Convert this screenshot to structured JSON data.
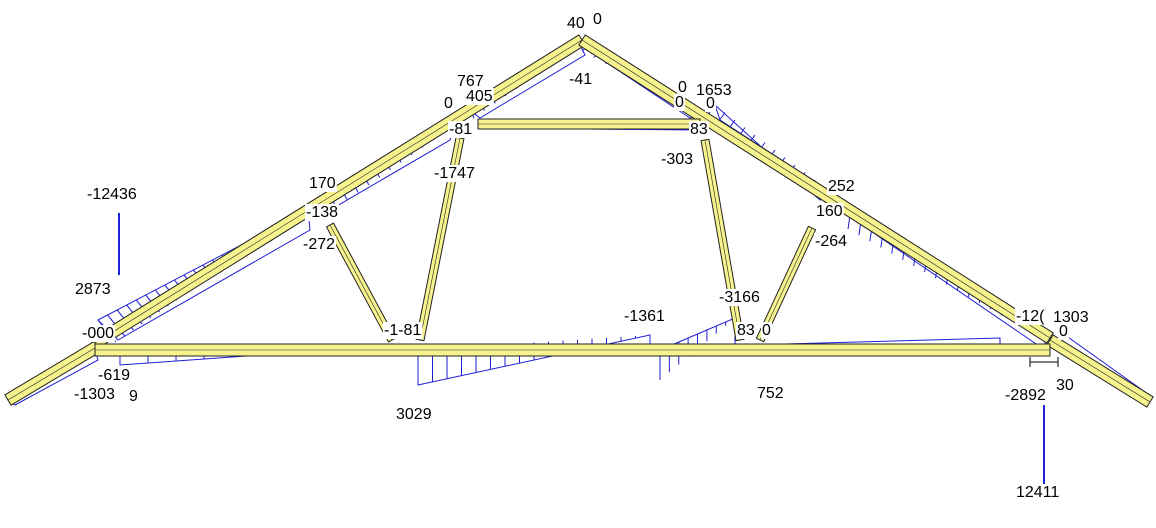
{
  "colors": {
    "member_fill": "#f6f28e",
    "member_edge": "#222222",
    "moment": "#1f1fd6",
    "background": "#ffffff"
  },
  "diagram": {
    "labels": {
      "top_peak_a": "40",
      "top_peak_b": "0",
      "l_upper_767": "767",
      "l_upper_405": "405",
      "l_upper_0": "0",
      "l_upper_m81": "-81",
      "peak_m41": "-41",
      "r_upper_0": "0",
      "r_upper_1653": "1653",
      "r_upper_0b": "0",
      "r_upper_0c": "0",
      "r_upper_83": "83",
      "r_upper_m303": "-303",
      "web_m1747": "-1747",
      "l_mid_170": "170",
      "l_mid_m138": "-138",
      "l_mid_m272": "-272",
      "r_mid_252": "252",
      "r_mid_160": "160",
      "r_mid_m264": "-264",
      "reaction_left": "-12436",
      "left_2873": "2873",
      "left_000": "-000",
      "left_m619": "-619",
      "left_m1303": "-1303",
      "left_9": "9",
      "bot_m181": "-1-81",
      "bot_3029": "3029",
      "bot_m1361": "-1361",
      "bot_m3166": "-3166",
      "bot_83": "83",
      "bot_0": "0",
      "bot_752": "752",
      "right_m120": "-12(",
      "right_1303": "1303",
      "right_0": "0",
      "right_m2892": "-2892",
      "right_30": "30",
      "reaction_right": "12411"
    }
  }
}
